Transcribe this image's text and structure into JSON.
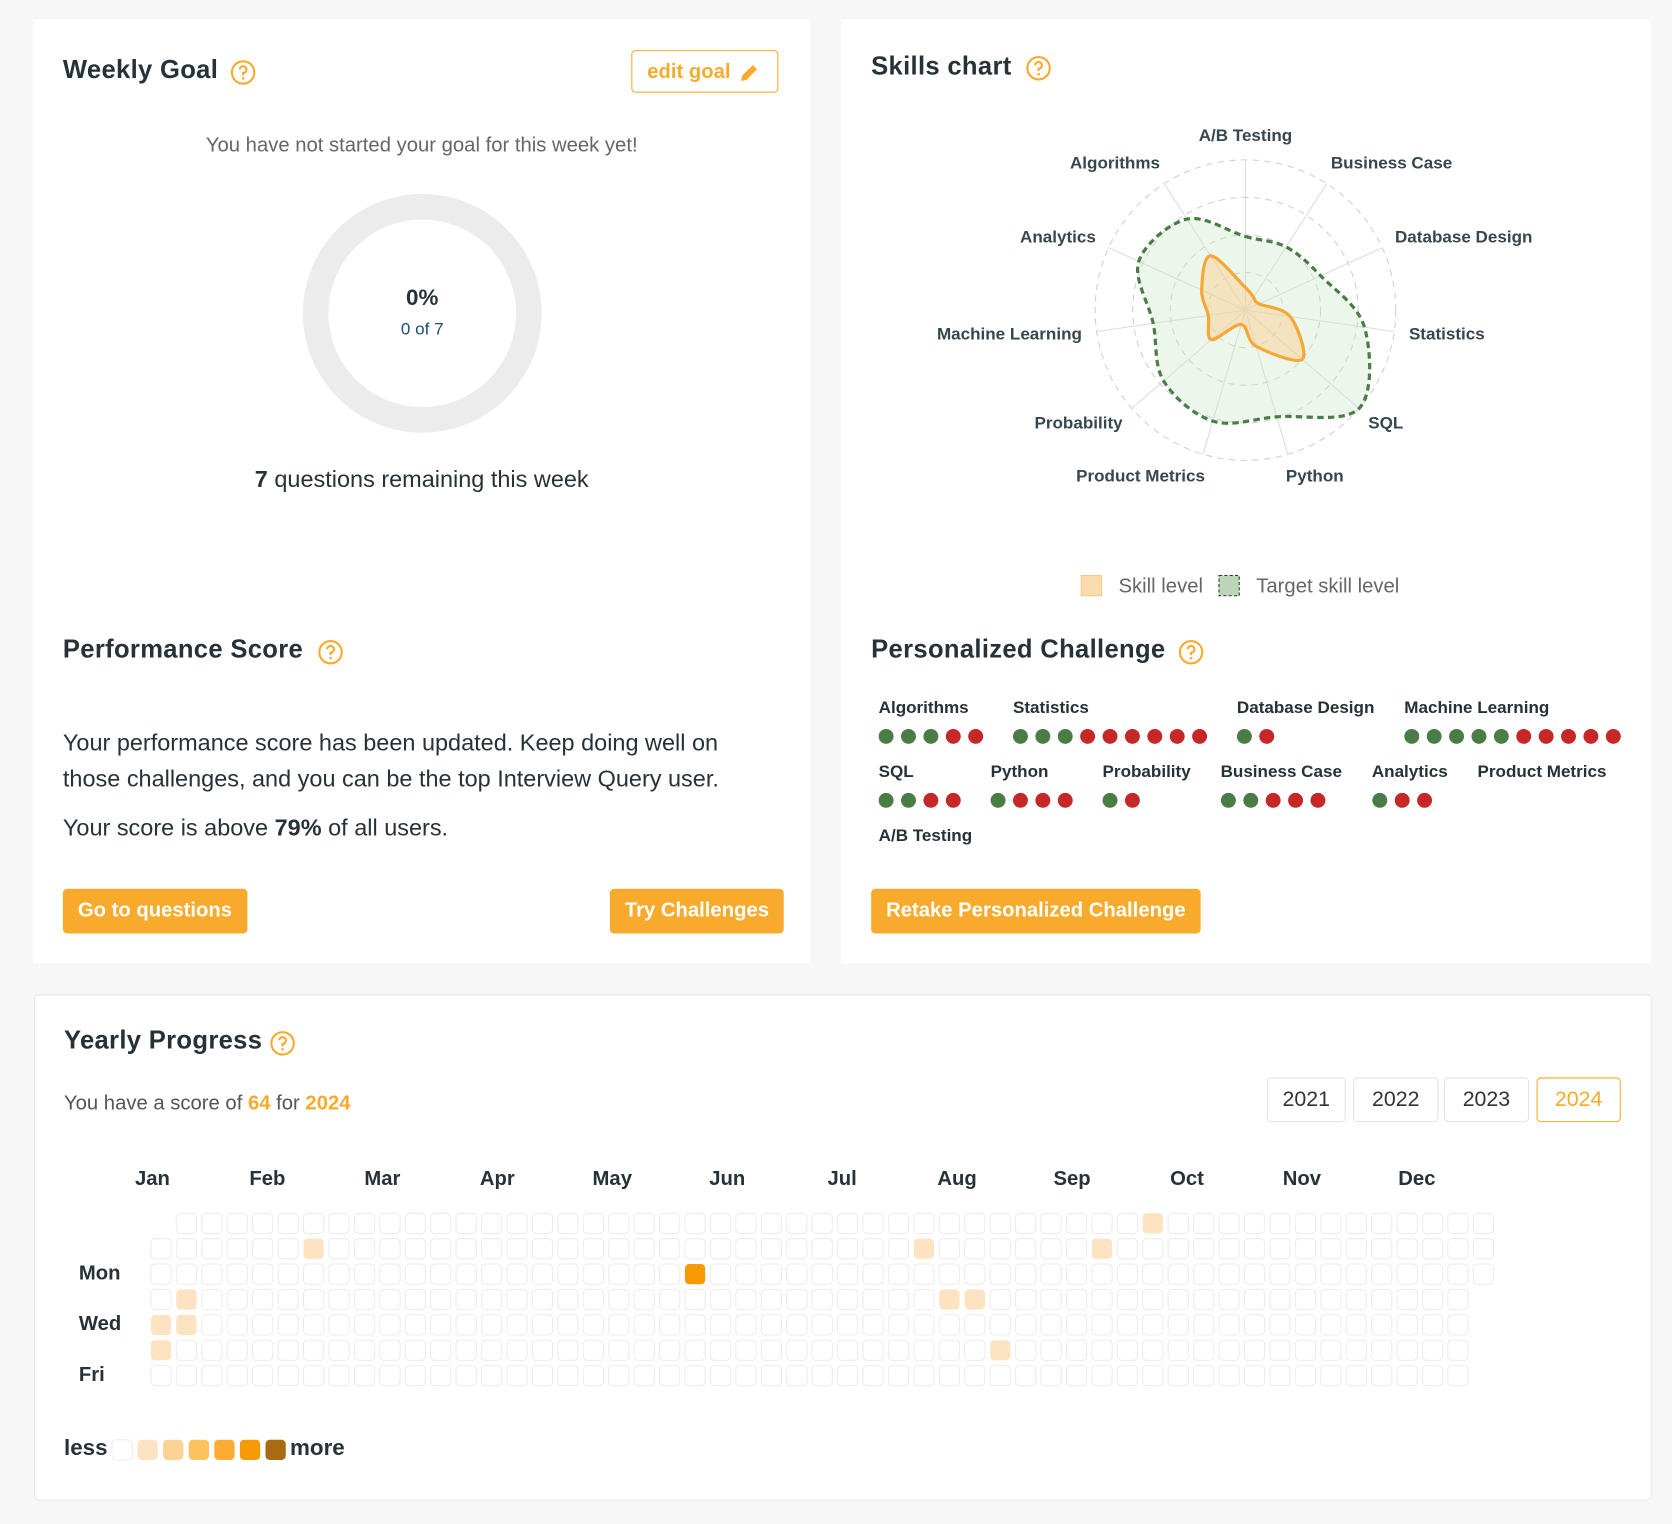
{
  "weekly_goal": {
    "title": "Weekly Goal",
    "edit_button": "edit goal",
    "status": "You have not started your goal for this week yet!",
    "percent": 0,
    "percent_label": "0%",
    "count_label": "0 of 7",
    "remaining": 7,
    "remaining_text": "questions remaining this week"
  },
  "performance": {
    "title": "Performance Score",
    "message": "Your performance score has been updated. Keep doing well on those challenges, and you can be the top Interview Query user.",
    "score_prefix": "Your score is above",
    "score": "79%",
    "score_suffix": "of all users.",
    "buttons": [
      "Go to questions",
      "Try Challenges"
    ]
  },
  "skills_chart": {
    "title": "Skills chart",
    "type": "radar",
    "categories": [
      "A/B Testing",
      "Business Case",
      "Database Design",
      "Statistics",
      "SQL",
      "Python",
      "Product Metrics",
      "Probability",
      "Machine Learning",
      "Analytics",
      "Algorithms"
    ],
    "series": [
      {
        "name": "Skill level",
        "color": "#f7a733",
        "values": [
          15,
          10,
          10,
          30,
          50,
          25,
          10,
          30,
          25,
          32,
          43
        ]
      },
      {
        "name": "Target skill level",
        "color": "#4a7c45",
        "values": [
          49,
          50,
          55,
          80,
          100,
          74,
          77,
          72,
          62,
          78,
          72
        ]
      }
    ],
    "rlim": [
      0,
      100
    ],
    "rticks": [
      25,
      50,
      75,
      100
    ]
  },
  "challenge": {
    "title": "Personalized Challenge",
    "correct_color": "#4a7c45",
    "incorrect_color": "#c62828",
    "skills": [
      {
        "name": "Algorithms",
        "correct": 3,
        "incorrect": 2
      },
      {
        "name": "Statistics",
        "correct": 3,
        "incorrect": 6
      },
      {
        "name": "Database Design",
        "correct": 1,
        "incorrect": 1
      },
      {
        "name": "Machine Learning",
        "correct": 5,
        "incorrect": 5
      },
      {
        "name": "SQL",
        "correct": 2,
        "incorrect": 2
      },
      {
        "name": "Python",
        "correct": 1,
        "incorrect": 3
      },
      {
        "name": "Probability",
        "correct": 1,
        "incorrect": 1
      },
      {
        "name": "Business Case",
        "correct": 2,
        "incorrect": 3
      },
      {
        "name": "Analytics",
        "correct": 1,
        "incorrect": 2
      },
      {
        "name": "Product Metrics"
      },
      {
        "name": "A/B Testing"
      }
    ],
    "button": "Retake Personalized Challenge"
  },
  "yearly": {
    "title": "Yearly Progress",
    "score_prefix": "You have a score of",
    "score": 64,
    "score_mid": "for",
    "year": 2024,
    "years": [
      2021,
      2022,
      2023,
      2024
    ],
    "selected_year": 2024,
    "months": [
      "Jan",
      "Feb",
      "Mar",
      "Apr",
      "May",
      "Jun",
      "Jul",
      "Aug",
      "Sep",
      "Oct",
      "Nov",
      "Dec"
    ],
    "day_labels": [
      null,
      null,
      "Mon",
      null,
      "Wed",
      null,
      "Fri"
    ],
    "grid": [
      [
        null,
        0,
        0,
        0,
        0,
        0,
        0,
        0,
        0,
        0,
        0,
        0,
        0,
        0,
        0,
        0,
        0,
        0,
        0,
        0,
        0,
        0,
        0,
        0,
        0,
        0,
        0,
        0,
        0,
        0,
        0,
        0,
        0,
        0,
        0,
        0,
        0,
        0,
        0,
        1,
        0,
        0,
        0,
        0,
        0,
        0,
        0,
        0,
        0,
        0,
        0,
        0,
        0
      ],
      [
        0,
        0,
        0,
        0,
        0,
        0,
        1,
        0,
        0,
        0,
        0,
        0,
        0,
        0,
        0,
        0,
        0,
        0,
        0,
        0,
        0,
        0,
        0,
        0,
        0,
        0,
        0,
        0,
        0,
        0,
        1,
        0,
        0,
        0,
        0,
        0,
        0,
        1,
        0,
        0,
        0,
        0,
        0,
        0,
        0,
        0,
        0,
        0,
        0,
        0,
        0,
        0,
        0
      ],
      [
        0,
        0,
        0,
        0,
        0,
        0,
        0,
        0,
        0,
        0,
        0,
        0,
        0,
        0,
        0,
        0,
        0,
        0,
        0,
        0,
        0,
        5,
        0,
        0,
        0,
        0,
        0,
        0,
        0,
        0,
        0,
        0,
        0,
        0,
        0,
        0,
        0,
        0,
        0,
        0,
        0,
        0,
        0,
        0,
        0,
        0,
        0,
        0,
        0,
        0,
        0,
        0,
        0
      ],
      [
        0,
        1,
        0,
        0,
        0,
        0,
        0,
        0,
        0,
        0,
        0,
        0,
        0,
        0,
        0,
        0,
        0,
        0,
        0,
        0,
        0,
        0,
        0,
        0,
        0,
        0,
        0,
        0,
        0,
        0,
        0,
        1,
        1,
        0,
        0,
        0,
        0,
        0,
        0,
        0,
        0,
        0,
        0,
        0,
        0,
        0,
        0,
        0,
        0,
        0,
        0,
        0,
        null
      ],
      [
        1,
        1,
        0,
        0,
        0,
        0,
        0,
        0,
        0,
        0,
        0,
        0,
        0,
        0,
        0,
        0,
        0,
        0,
        0,
        0,
        0,
        0,
        0,
        0,
        0,
        0,
        0,
        0,
        0,
        0,
        0,
        0,
        0,
        0,
        0,
        0,
        0,
        0,
        0,
        0,
        0,
        0,
        0,
        0,
        0,
        0,
        0,
        0,
        0,
        0,
        0,
        0,
        null
      ],
      [
        1,
        0,
        0,
        0,
        0,
        0,
        0,
        0,
        0,
        0,
        0,
        0,
        0,
        0,
        0,
        0,
        0,
        0,
        0,
        0,
        0,
        0,
        0,
        0,
        0,
        0,
        0,
        0,
        0,
        0,
        0,
        0,
        0,
        1,
        0,
        0,
        0,
        0,
        0,
        0,
        0,
        0,
        0,
        0,
        0,
        0,
        0,
        0,
        0,
        0,
        0,
        0,
        null
      ],
      [
        0,
        0,
        0,
        0,
        0,
        0,
        0,
        0,
        0,
        0,
        0,
        0,
        0,
        0,
        0,
        0,
        0,
        0,
        0,
        0,
        0,
        0,
        0,
        0,
        0,
        0,
        0,
        0,
        0,
        0,
        0,
        0,
        0,
        0,
        0,
        0,
        0,
        0,
        0,
        0,
        0,
        0,
        0,
        0,
        0,
        0,
        0,
        0,
        0,
        0,
        0,
        0,
        null
      ]
    ],
    "legend_less": "less",
    "legend_more": "more",
    "level_colors": [
      "#ffffff",
      "#fde3c2",
      "#fdd395",
      "#fcc25d",
      "#fbac32",
      "#f79a05",
      "#a86b12"
    ]
  }
}
